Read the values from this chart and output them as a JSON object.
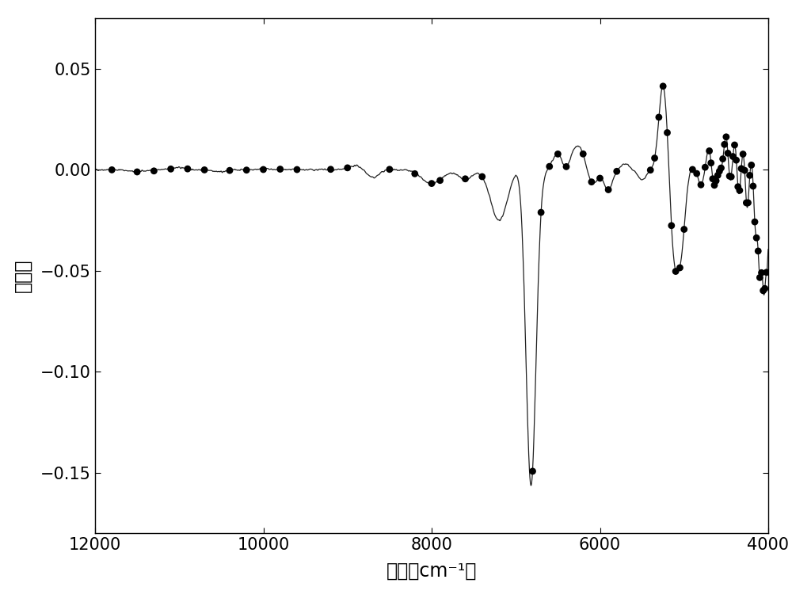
{
  "title": "",
  "xlabel": "波数（cm⁻¹）",
  "ylabel": "吸收値",
  "xlim": [
    12000,
    4000
  ],
  "ylim": [
    -0.18,
    0.075
  ],
  "yticks": [
    0.05,
    0.0,
    -0.05,
    -0.1,
    -0.15
  ],
  "xticks": [
    12000,
    10000,
    8000,
    6000,
    4000
  ],
  "line_color": "#222222",
  "dot_color": "#000000",
  "bg_color": "#ffffff",
  "line_width": 0.9,
  "dot_size": 40,
  "xlabel_fontsize": 17,
  "ylabel_fontsize": 17,
  "tick_fontsize": 15
}
